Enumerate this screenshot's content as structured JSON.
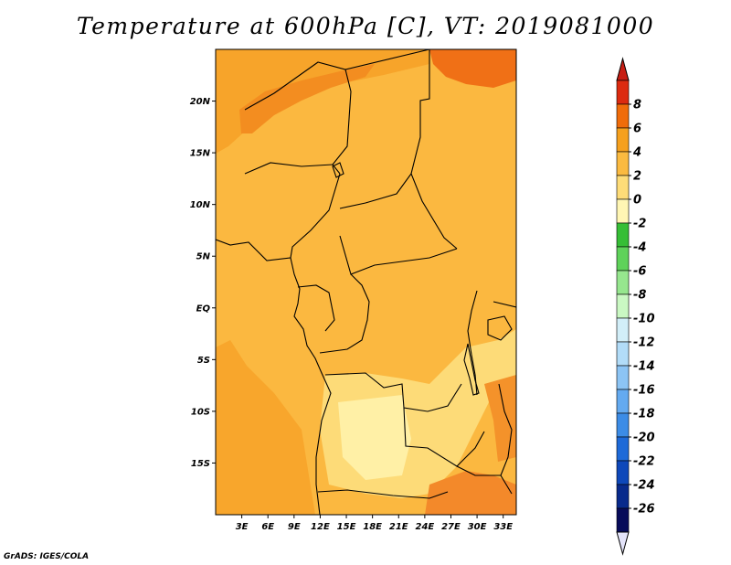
{
  "title": "Temperature at 600hPa [C], VT: 2019081000",
  "footer": "GrADS: IGES/COLA",
  "map": {
    "lon_range": [
      0,
      34.5
    ],
    "lat_range": [
      -20,
      25
    ],
    "lat_ticks": [
      {
        "value": 20,
        "label": "20N"
      },
      {
        "value": 15,
        "label": "15N"
      },
      {
        "value": 10,
        "label": "10N"
      },
      {
        "value": 5,
        "label": "5N"
      },
      {
        "value": 0,
        "label": "EQ"
      },
      {
        "value": -5,
        "label": "5S"
      },
      {
        "value": -10,
        "label": "10S"
      },
      {
        "value": -15,
        "label": "15S"
      }
    ],
    "lon_ticks": [
      {
        "value": 3,
        "label": "3E"
      },
      {
        "value": 6,
        "label": "6E"
      },
      {
        "value": 9,
        "label": "9E"
      },
      {
        "value": 12,
        "label": "12E"
      },
      {
        "value": 15,
        "label": "15E"
      },
      {
        "value": 18,
        "label": "18E"
      },
      {
        "value": 21,
        "label": "21E"
      },
      {
        "value": 24,
        "label": "24E"
      },
      {
        "value": 27,
        "label": "27E"
      },
      {
        "value": 30,
        "label": "30E"
      },
      {
        "value": 33,
        "label": "33E"
      }
    ]
  },
  "colorbar": {
    "labels": [
      "8",
      "6",
      "4",
      "2",
      "0",
      "-2",
      "-4",
      "-6",
      "-8",
      "-10",
      "-12",
      "-14",
      "-16",
      "-18",
      "-20",
      "-22",
      "-24",
      "-26"
    ],
    "colors": [
      "#dc2b10",
      "#f06c0a",
      "#f6a01e",
      "#fbba40",
      "#fedc78",
      "#fff6b4",
      "#36be36",
      "#5fd25a",
      "#96e68e",
      "#caf8c3",
      "#d2eef8",
      "#b2dcf8",
      "#8cc4f4",
      "#64aaf0",
      "#3c8ce6",
      "#1e6ad8",
      "#0e48ba",
      "#082a8c",
      "#080c5a"
    ],
    "top_arrow_color": "#c71e14",
    "bottom_arrow_color": "#e4e4fa"
  }
}
